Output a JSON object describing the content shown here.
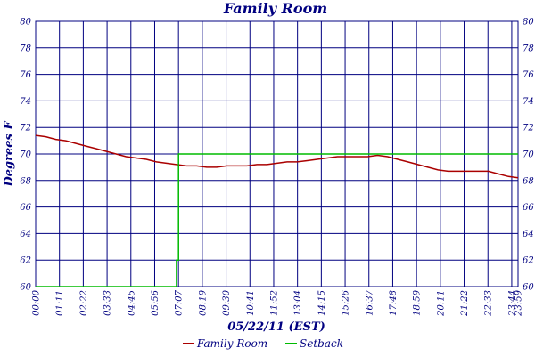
{
  "chart_data": {
    "type": "line",
    "title": "Family Room",
    "xlabel": "05/22/11 (EST)",
    "ylabel": "Degrees F",
    "ylim": [
      60,
      80
    ],
    "yticks": [
      60,
      62,
      64,
      66,
      68,
      70,
      72,
      74,
      76,
      78,
      80
    ],
    "right_axis": true,
    "grid": true,
    "legend_position": "bottom",
    "xlim": [
      0,
      23.98
    ],
    "xtick_labels": [
      "00:00",
      "01:11",
      "02:22",
      "03:33",
      "04:45",
      "05:56",
      "07:07",
      "08:19",
      "09:30",
      "10:41",
      "11:52",
      "13:04",
      "14:15",
      "15:26",
      "16:37",
      "17:48",
      "18:59",
      "20:11",
      "21:22",
      "22:33",
      "23:44",
      "23:59"
    ],
    "colors": {
      "plot_area": "#ffffff",
      "grid": "#000080",
      "text": "#000080"
    },
    "series": [
      {
        "name": "Family Room",
        "color": "#aa0000",
        "x": [
          0,
          0.5,
          1,
          1.5,
          2,
          2.5,
          3,
          3.5,
          4,
          4.5,
          5,
          5.5,
          6,
          6.5,
          7,
          7.5,
          8,
          8.5,
          9,
          9.5,
          10,
          10.5,
          11,
          11.5,
          12,
          12.5,
          13,
          13.5,
          14,
          14.5,
          15,
          15.5,
          16,
          16.5,
          17,
          17.5,
          18,
          18.5,
          19,
          19.5,
          20,
          20.5,
          21,
          21.5,
          22,
          22.5,
          23,
          23.5,
          23.98
        ],
        "values": [
          71.4,
          71.3,
          71.1,
          71.0,
          70.8,
          70.6,
          70.4,
          70.2,
          70.0,
          69.8,
          69.7,
          69.6,
          69.4,
          69.3,
          69.2,
          69.1,
          69.1,
          69.0,
          69.0,
          69.1,
          69.1,
          69.1,
          69.2,
          69.2,
          69.3,
          69.4,
          69.4,
          69.5,
          69.6,
          69.7,
          69.8,
          69.8,
          69.8,
          69.8,
          69.9,
          69.8,
          69.6,
          69.4,
          69.2,
          69.0,
          68.8,
          68.7,
          68.7,
          68.7,
          68.7,
          68.7,
          68.5,
          68.3,
          68.2
        ]
      },
      {
        "name": "Setback",
        "color": "#00bb00",
        "x": [
          0,
          7.0,
          7.0,
          7.1,
          7.1,
          23.98
        ],
        "values": [
          60,
          60,
          62,
          62,
          70,
          70
        ]
      }
    ]
  }
}
